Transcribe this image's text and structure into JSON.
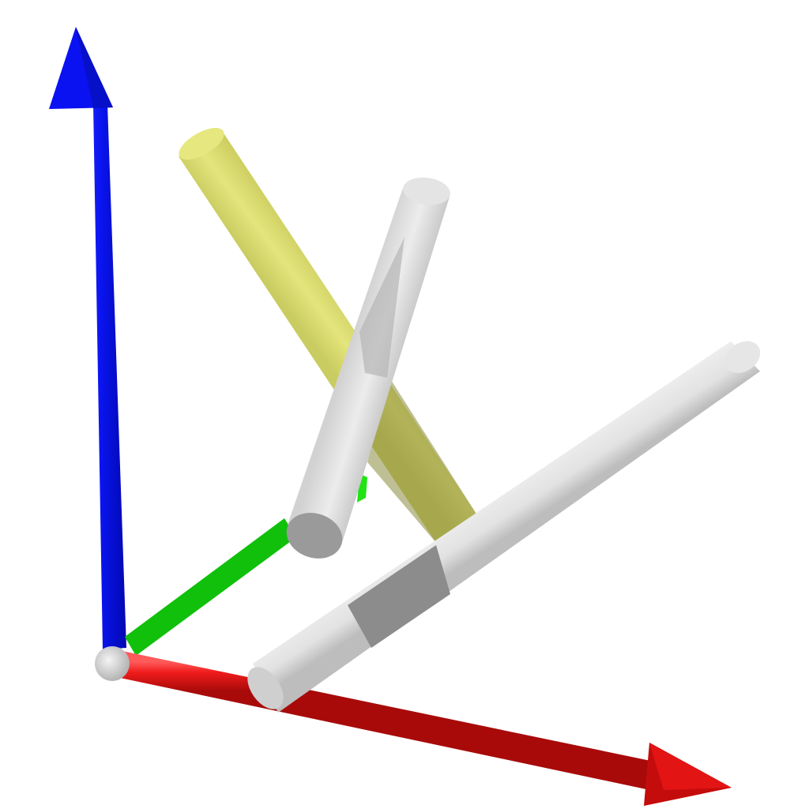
{
  "scene": {
    "background": "#ffffff",
    "axes": [
      {
        "name": "x-axis",
        "color": "#e8141a",
        "dark": "#9e0a0d",
        "direction": "right-down"
      },
      {
        "name": "y-axis",
        "color": "#22e314",
        "dark": "#11990a",
        "direction": "up-right"
      },
      {
        "name": "z-axis",
        "color": "#0a14f5",
        "dark": "#040a9a",
        "direction": "up"
      }
    ],
    "origin_color": "#d8d8d8",
    "rods": [
      {
        "name": "yellow-rod",
        "color": "#d6d86a"
      },
      {
        "name": "upper-white-rod",
        "color": "#e0e0e0"
      },
      {
        "name": "long-white-rod",
        "color": "#e0e0e0"
      }
    ]
  }
}
